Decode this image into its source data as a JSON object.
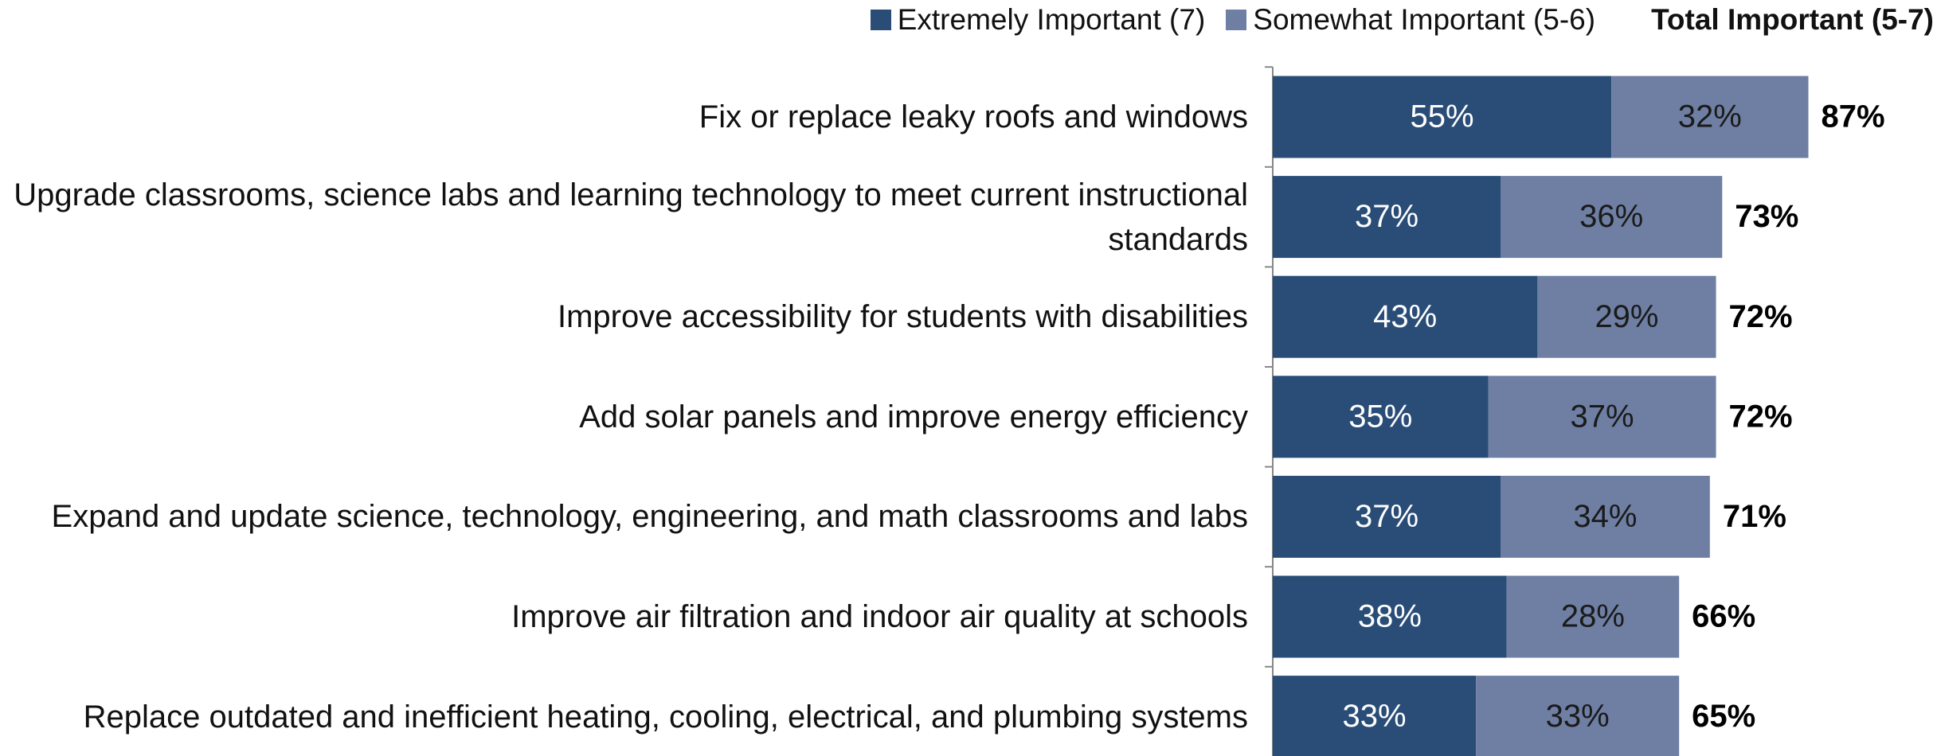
{
  "chart_data": {
    "type": "stacked-bar-horizontal",
    "categories": [
      "Fix or replace leaky roofs and windows",
      "Upgrade classrooms, science labs and learning technology to meet current instructional standards",
      "Improve accessibility for students with disabilities",
      "Add solar panels and improve energy efficiency",
      "Expand and update science, technology, engineering, and math classrooms and labs",
      "Improve air filtration and indoor air quality at schools",
      "Replace outdated and inefficient heating, cooling, electrical, and plumbing systems"
    ],
    "series": [
      {
        "name": "Extremely Important (7)",
        "color": "#2a4d77",
        "label_color": "#ffffff",
        "values": [
          55,
          37,
          43,
          35,
          37,
          38,
          33
        ],
        "value_labels": [
          "55%",
          "37%",
          "43%",
          "35%",
          "37%",
          "38%",
          "33%"
        ]
      },
      {
        "name": "Somewhat Important (5-6)",
        "color": "#6e7fa3",
        "label_color": "#1a1a1a",
        "values": [
          32,
          36,
          29,
          37,
          34,
          28,
          33
        ],
        "value_labels": [
          "32%",
          "36%",
          "29%",
          "37%",
          "34%",
          "28%",
          "33%"
        ]
      }
    ],
    "totals": {
      "name": "Total Important (5-7)",
      "values": [
        87,
        73,
        72,
        72,
        71,
        66,
        65
      ],
      "value_labels": [
        "87%",
        "73%",
        "72%",
        "72%",
        "71%",
        "66%",
        "65%"
      ]
    },
    "legend": "top-right"
  }
}
